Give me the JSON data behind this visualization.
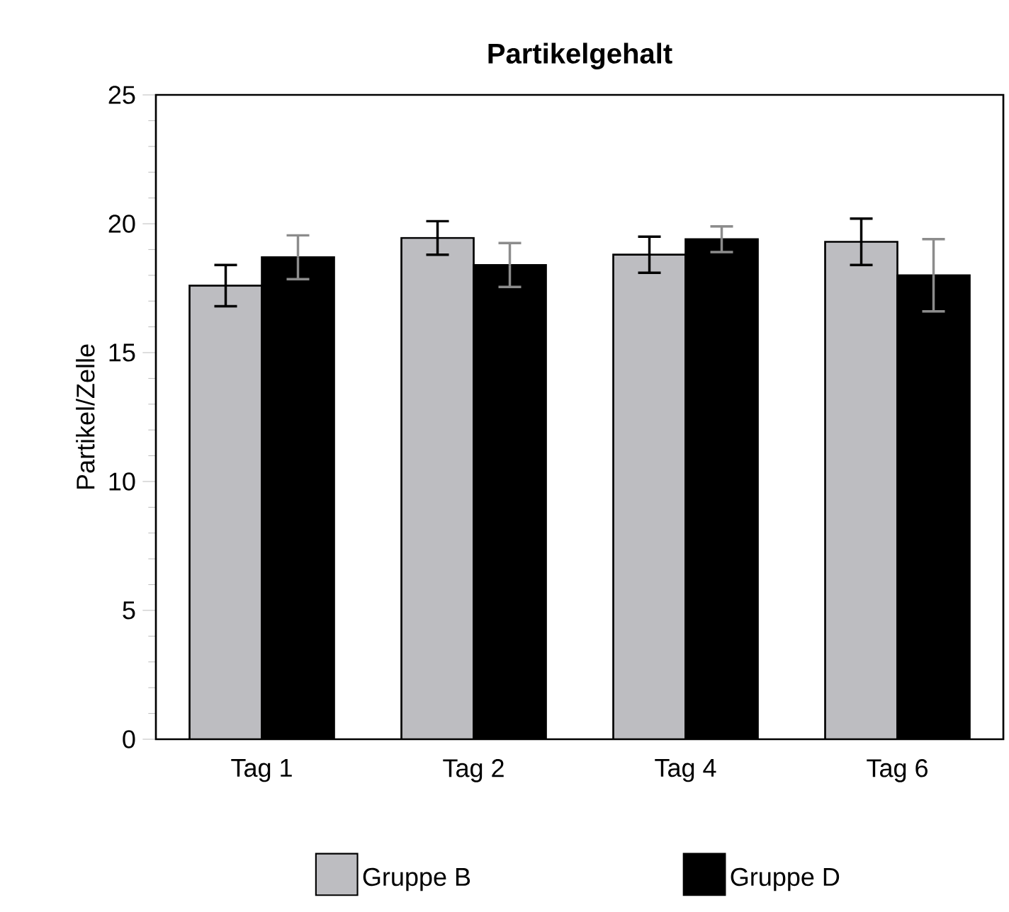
{
  "chart_data": {
    "type": "bar",
    "title": "Partikelgehalt",
    "ylabel": "Partikel/Zelle",
    "categories": [
      "Tag 1",
      "Tag 2",
      "Tag 4",
      "Tag 6"
    ],
    "series": [
      {
        "name": "Gruppe B",
        "color": "#bdbdc1",
        "values": [
          17.6,
          19.45,
          18.8,
          19.3
        ],
        "errors": [
          0.8,
          0.65,
          0.7,
          0.9
        ]
      },
      {
        "name": "Gruppe D",
        "color": "#000000",
        "values": [
          18.7,
          18.4,
          19.4,
          18.0
        ],
        "errors": [
          0.85,
          0.85,
          0.5,
          1.4
        ]
      }
    ],
    "ylim": [
      0,
      25
    ],
    "yticks": [
      0,
      5,
      10,
      15,
      20,
      25
    ],
    "grid": false,
    "legend": "bottom"
  }
}
